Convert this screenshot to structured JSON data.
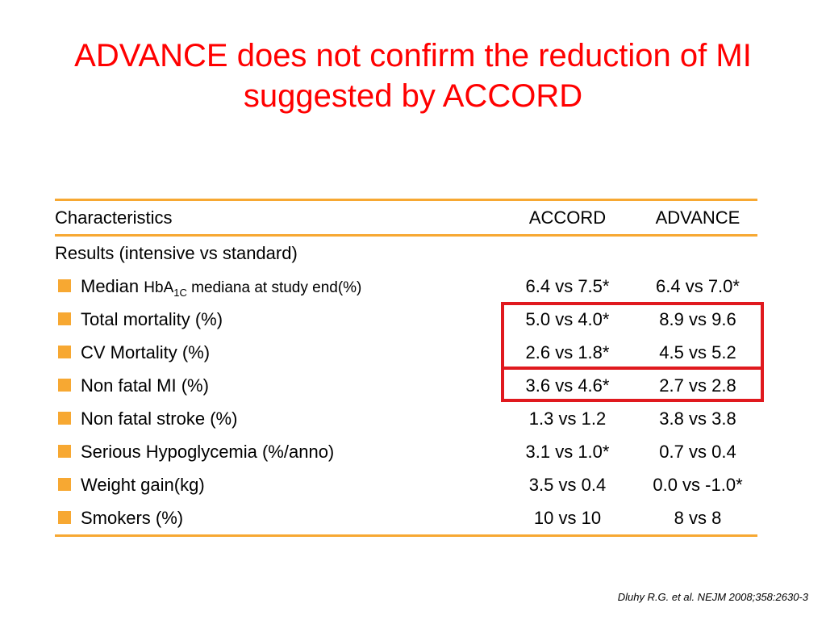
{
  "title": {
    "line1": "ADVANCE does not confirm the reduction of MI",
    "line2": "suggested by ACCORD"
  },
  "table": {
    "headers": [
      "Characteristics",
      "ACCORD",
      "ADVANCE"
    ],
    "section_label": "Results (intensive vs standard)",
    "rows": [
      {
        "label_main": "Median",
        "label_small_pre": "HbA",
        "label_sub": "1C",
        "label_small_post": " mediana at study end(%)",
        "accord": "6.4 vs 7.5*",
        "advance": "6.4 vs 7.0*"
      },
      {
        "label": "Total mortality (%)",
        "accord": "5.0 vs 4.0*",
        "advance": "8.9 vs 9.6"
      },
      {
        "label": "CV Mortality (%)",
        "accord": "2.6 vs 1.8*",
        "advance": "4.5 vs 5.2"
      },
      {
        "label": "Non fatal MI (%)",
        "accord": "3.6 vs 4.6*",
        "advance": "2.7 vs 2.8"
      },
      {
        "label": "Non fatal stroke (%)",
        "accord": "1.3 vs 1.2",
        "advance": "3.8 vs 3.8"
      },
      {
        "label": "Serious Hypoglycemia (%/anno)",
        "accord": "3.1 vs 1.0*",
        "advance": "0.7 vs 0.4"
      },
      {
        "label": "Weight gain(kg)",
        "accord": "3.5 vs 0.4",
        "advance": "0.0 vs -1.0*"
      },
      {
        "label": "Smokers (%)",
        "accord": "10 vs 10",
        "advance": "8  vs 8"
      }
    ]
  },
  "citation": "Dluhy R.G. et al. NEJM 2008;358:2630-3",
  "colors": {
    "title": "#ff0000",
    "rule": "#f7a832",
    "bullet": "#f7a832",
    "highlight": "#e0191e"
  }
}
